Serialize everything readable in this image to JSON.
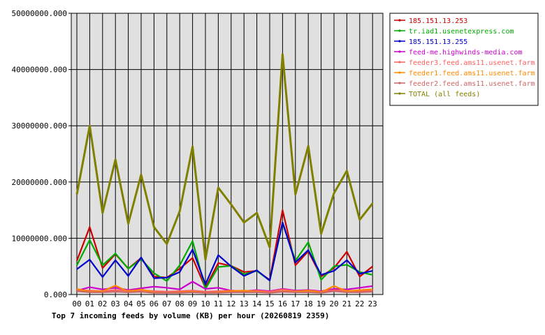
{
  "chart_data": {
    "type": "line",
    "title": "Top 7 incoming feeds by volume (KB) per hour (20260819 2359)",
    "ylim": [
      0,
      50000000
    ],
    "yticks": [
      "0.000",
      "10000000.000",
      "20000000.000",
      "30000000.000",
      "40000000.000",
      "50000000.000"
    ],
    "categories": [
      "00",
      "01",
      "02",
      "03",
      "04",
      "05",
      "06",
      "07",
      "08",
      "09",
      "10",
      "11",
      "12",
      "13",
      "14",
      "15",
      "16",
      "17",
      "18",
      "19",
      "20",
      "21",
      "22",
      "23"
    ],
    "grid": true,
    "legend_position": "top-right",
    "series": [
      {
        "name": "185.151.13.253",
        "color": "#cc0000",
        "values": [
          6000000,
          12000000,
          4700000,
          7200000,
          4600000,
          6500000,
          3200000,
          3000000,
          4600000,
          6500000,
          1200000,
          5600000,
          5100000,
          4000000,
          4200000,
          2600000,
          15000000,
          5200000,
          7700000,
          3200000,
          4700000,
          7600000,
          3200000,
          5000000
        ]
      },
      {
        "name": "tr.iad1.usenetexpress.com",
        "color": "#00aa00",
        "values": [
          5200000,
          9700000,
          5200000,
          7300000,
          4600000,
          6300000,
          3800000,
          2400000,
          5200000,
          9500000,
          1000000,
          4900000,
          5100000,
          3600000,
          4200000,
          2500000,
          12800000,
          6000000,
          9300000,
          2600000,
          5000000,
          5300000,
          4000000,
          3500000
        ]
      },
      {
        "name": "185.151.13.255",
        "color": "#0000cc",
        "values": [
          4500000,
          6200000,
          3100000,
          6100000,
          3300000,
          6600000,
          2900000,
          3000000,
          4000000,
          8000000,
          1800000,
          7000000,
          5000000,
          3300000,
          4300000,
          2500000,
          12800000,
          5700000,
          7900000,
          3500000,
          4200000,
          6100000,
          3700000,
          4200000
        ]
      },
      {
        "name": "feed-me.highwinds-media.com",
        "color": "#cc00cc",
        "values": [
          700000,
          1300000,
          900000,
          1200000,
          800000,
          1100000,
          1400000,
          1200000,
          900000,
          2300000,
          1000000,
          1200000,
          700000,
          600000,
          800000,
          600000,
          1000000,
          700000,
          800000,
          600000,
          1000000,
          900000,
          1200000,
          1500000
        ]
      },
      {
        "name": "feeder3.feed.ams11.usenet.farm",
        "color": "#ff6060",
        "values": [
          800000,
          700000,
          600000,
          800000,
          700000,
          800000,
          600000,
          500000,
          600000,
          700000,
          500000,
          600000,
          700000,
          600000,
          700000,
          500000,
          900000,
          600000,
          700000,
          500000,
          800000,
          700000,
          600000,
          800000
        ]
      },
      {
        "name": "feeder1.feed.ams11.usenet.farm",
        "color": "#ff8800",
        "values": [
          1000000,
          500000,
          600000,
          1600000,
          500000,
          900000,
          400000,
          300000,
          400000,
          500000,
          300000,
          400000,
          600000,
          700000,
          500000,
          300000,
          600000,
          500000,
          700000,
          400000,
          1500000,
          600000,
          800000,
          900000
        ]
      },
      {
        "name": "feeder2.feed.ams11.usenet.farm",
        "color": "#cc6666",
        "values": [
          600000,
          400000,
          400000,
          500000,
          400000,
          500000,
          300000,
          300000,
          300000,
          400000,
          300000,
          300000,
          400000,
          400000,
          400000,
          300000,
          500000,
          400000,
          400000,
          300000,
          600000,
          400000,
          400000,
          500000
        ]
      },
      {
        "name": "TOTAL (all feeds)",
        "color": "#808000",
        "values": [
          17800000,
          30000000,
          14500000,
          24000000,
          12600000,
          21300000,
          12000000,
          9000000,
          14800000,
          26300000,
          6200000,
          19000000,
          16000000,
          12800000,
          14500000,
          8400000,
          42700000,
          17800000,
          26400000,
          10800000,
          18000000,
          22000000,
          13300000,
          16200000
        ]
      }
    ]
  }
}
